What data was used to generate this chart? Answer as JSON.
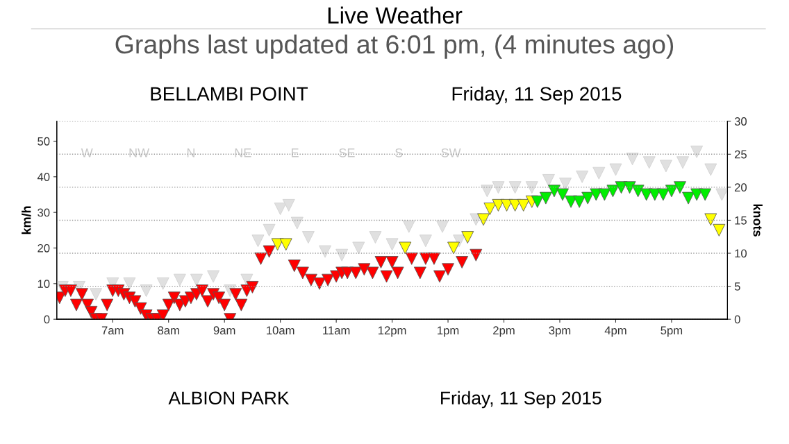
{
  "chart_data": {
    "type": "scatter",
    "title": "Live Weather",
    "subtitle": "Graphs last updated at 6:01 pm, (4 minutes ago)",
    "annotations": [
      "BELLAMBI POINT",
      "Friday, 11 Sep 2015",
      "W",
      "NW",
      "N",
      "NE",
      "E",
      "SE",
      "S",
      "SW",
      "ALBION PARK",
      "Friday, 11 Sep 2015"
    ],
    "ylabel": "km/h",
    "y2label": "knots",
    "marker": "triangle",
    "grid": "y",
    "legend": false,
    "xlim": [
      "2015-09-11T06:00",
      "2015-09-11T18:00"
    ],
    "xticks": [
      {
        "value": "2015-09-11T07:00",
        "label": "7am"
      },
      {
        "value": "2015-09-11T08:00",
        "label": "8am"
      },
      {
        "value": "2015-09-11T09:00",
        "label": "9am"
      },
      {
        "value": "2015-09-11T10:00",
        "label": "10am"
      },
      {
        "value": "2015-09-11T11:00",
        "label": "11am"
      },
      {
        "value": "2015-09-11T12:00",
        "label": "12pm"
      },
      {
        "value": "2015-09-11T13:00",
        "label": "1pm"
      },
      {
        "value": "2015-09-11T14:00",
        "label": "2pm"
      },
      {
        "value": "2015-09-11T15:00",
        "label": "3pm"
      },
      {
        "value": "2015-09-11T16:00",
        "label": "4pm"
      },
      {
        "value": "2015-09-11T17:00",
        "label": "5pm"
      }
    ],
    "ylim": [
      0,
      55.6
    ],
    "yticks": [
      0,
      10,
      20,
      30,
      40,
      50
    ],
    "y2lim": [
      0,
      30
    ],
    "y2ticks": [
      0,
      5,
      10,
      15,
      20,
      25,
      30
    ],
    "series": [
      {
        "color": "#e0e0e0",
        "x": [
          "2015-09-11T06:06",
          "2015-09-11T06:24",
          "2015-09-11T06:42",
          "2015-09-11T07:00",
          "2015-09-11T07:18",
          "2015-09-11T07:36",
          "2015-09-11T07:54",
          "2015-09-11T08:12",
          "2015-09-11T08:30",
          "2015-09-11T08:48",
          "2015-09-11T09:06",
          "2015-09-11T09:24",
          "2015-09-11T09:36",
          "2015-09-11T09:48",
          "2015-09-11T10:00",
          "2015-09-11T10:09",
          "2015-09-11T10:18",
          "2015-09-11T10:30",
          "2015-09-11T10:48",
          "2015-09-11T11:06",
          "2015-09-11T11:24",
          "2015-09-11T11:42",
          "2015-09-11T12:00",
          "2015-09-11T12:18",
          "2015-09-11T12:36",
          "2015-09-11T12:54",
          "2015-09-11T13:12",
          "2015-09-11T13:30",
          "2015-09-11T13:42",
          "2015-09-11T13:54",
          "2015-09-11T14:12",
          "2015-09-11T14:30",
          "2015-09-11T14:48",
          "2015-09-11T15:06",
          "2015-09-11T15:24",
          "2015-09-11T15:42",
          "2015-09-11T16:00",
          "2015-09-11T16:18",
          "2015-09-11T16:36",
          "2015-09-11T16:54",
          "2015-09-11T17:12",
          "2015-09-11T17:27",
          "2015-09-11T17:42",
          "2015-09-11T17:54"
        ],
        "values": [
          9,
          9,
          7,
          10,
          10,
          8,
          10,
          11,
          11,
          12,
          8,
          11,
          22,
          25,
          31,
          32,
          27,
          23,
          19,
          18,
          20,
          23,
          21,
          26,
          22,
          26,
          22,
          28,
          36,
          37,
          37,
          37,
          39,
          38,
          40,
          41,
          42,
          45,
          44,
          43,
          44,
          47,
          42,
          35
        ]
      },
      {
        "x": [
          "2015-09-11T06:03",
          "2015-09-11T06:09",
          "2015-09-11T06:15",
          "2015-09-11T06:21",
          "2015-09-11T06:27",
          "2015-09-11T06:33",
          "2015-09-11T06:37",
          "2015-09-11T06:42",
          "2015-09-11T06:48",
          "2015-09-11T06:54",
          "2015-09-11T07:00",
          "2015-09-11T07:06",
          "2015-09-11T07:12",
          "2015-09-11T07:18",
          "2015-09-11T07:24",
          "2015-09-11T07:30",
          "2015-09-11T07:36",
          "2015-09-11T07:42",
          "2015-09-11T07:48",
          "2015-09-11T07:54",
          "2015-09-11T08:00",
          "2015-09-11T08:06",
          "2015-09-11T08:12",
          "2015-09-11T08:18",
          "2015-09-11T08:24",
          "2015-09-11T08:30",
          "2015-09-11T08:36",
          "2015-09-11T08:42",
          "2015-09-11T08:48",
          "2015-09-11T08:54",
          "2015-09-11T09:00",
          "2015-09-11T09:06",
          "2015-09-11T09:12",
          "2015-09-11T09:18",
          "2015-09-11T09:24",
          "2015-09-11T09:30",
          "2015-09-11T09:39",
          "2015-09-11T09:48",
          "2015-09-11T09:57",
          "2015-09-11T10:06",
          "2015-09-11T10:15",
          "2015-09-11T10:24",
          "2015-09-11T10:33",
          "2015-09-11T10:42",
          "2015-09-11T10:51",
          "2015-09-11T11:00",
          "2015-09-11T11:06",
          "2015-09-11T11:12",
          "2015-09-11T11:21",
          "2015-09-11T11:30",
          "2015-09-11T11:39",
          "2015-09-11T11:48",
          "2015-09-11T11:54",
          "2015-09-11T12:00",
          "2015-09-11T12:06",
          "2015-09-11T12:14",
          "2015-09-11T12:21",
          "2015-09-11T12:30",
          "2015-09-11T12:36",
          "2015-09-11T12:45",
          "2015-09-11T12:51",
          "2015-09-11T13:00",
          "2015-09-11T13:06",
          "2015-09-11T13:15",
          "2015-09-11T13:21",
          "2015-09-11T13:30",
          "2015-09-11T13:38",
          "2015-09-11T13:45",
          "2015-09-11T13:54",
          "2015-09-11T14:03",
          "2015-09-11T14:12",
          "2015-09-11T14:21",
          "2015-09-11T14:30",
          "2015-09-11T14:36",
          "2015-09-11T14:45",
          "2015-09-11T14:54",
          "2015-09-11T15:03",
          "2015-09-11T15:12",
          "2015-09-11T15:21",
          "2015-09-11T15:30",
          "2015-09-11T15:39",
          "2015-09-11T15:48",
          "2015-09-11T15:57",
          "2015-09-11T16:06",
          "2015-09-11T16:15",
          "2015-09-11T16:24",
          "2015-09-11T16:33",
          "2015-09-11T16:42",
          "2015-09-11T16:51",
          "2015-09-11T17:00",
          "2015-09-11T17:09",
          "2015-09-11T17:18",
          "2015-09-11T17:27",
          "2015-09-11T17:36",
          "2015-09-11T17:42",
          "2015-09-11T17:51"
        ],
        "values": [
          6,
          8,
          8,
          4,
          7,
          4,
          2,
          0,
          0,
          4,
          8,
          8,
          7,
          6,
          5,
          3,
          1,
          0,
          0,
          1,
          4,
          6,
          4,
          5,
          6,
          7,
          8,
          5,
          7,
          6,
          4,
          0,
          7,
          4,
          8,
          9,
          17,
          19,
          21,
          21,
          15,
          13,
          11,
          10,
          11,
          12,
          13,
          13,
          13,
          14,
          13,
          16,
          12,
          16,
          13,
          20,
          17,
          13,
          17,
          17,
          12,
          14,
          20,
          16,
          23,
          18,
          28,
          31,
          32,
          32,
          32,
          32,
          33,
          33,
          34,
          36,
          35,
          33,
          33,
          34,
          35,
          35,
          36,
          37,
          37,
          36,
          35,
          35,
          35,
          36,
          37,
          34,
          35,
          35,
          28,
          25
        ],
        "colors": [
          "#ff0000",
          "#ff0000",
          "#ff0000",
          "#ff0000",
          "#ff0000",
          "#ff0000",
          "#ff0000",
          "#ff0000",
          "#ff0000",
          "#ff0000",
          "#ff0000",
          "#ff0000",
          "#ff0000",
          "#ff0000",
          "#ff0000",
          "#ff0000",
          "#ff0000",
          "#ff0000",
          "#ff0000",
          "#ff0000",
          "#ff0000",
          "#ff0000",
          "#ff0000",
          "#ff0000",
          "#ff0000",
          "#ff0000",
          "#ff0000",
          "#ff0000",
          "#ff0000",
          "#ff0000",
          "#ff0000",
          "#ff0000",
          "#ff0000",
          "#ff0000",
          "#ff0000",
          "#ff0000",
          "#ff0000",
          "#ff0000",
          "#ffff00",
          "#ffff00",
          "#ff0000",
          "#ff0000",
          "#ff0000",
          "#ff0000",
          "#ff0000",
          "#ff0000",
          "#ff0000",
          "#ff0000",
          "#ff0000",
          "#ff0000",
          "#ff0000",
          "#ff0000",
          "#ff0000",
          "#ff0000",
          "#ff0000",
          "#ffff00",
          "#ff0000",
          "#ff0000",
          "#ff0000",
          "#ff0000",
          "#ff0000",
          "#ff0000",
          "#ffff00",
          "#ff0000",
          "#ffff00",
          "#ff0000",
          "#ffff00",
          "#ffff00",
          "#ffff00",
          "#ffff00",
          "#ffff00",
          "#ffff00",
          "#ffff00",
          "#00ee00",
          "#00ee00",
          "#00ee00",
          "#00ee00",
          "#00ee00",
          "#00ee00",
          "#00ee00",
          "#00ee00",
          "#00ee00",
          "#00ee00",
          "#00ee00",
          "#00ee00",
          "#00ee00",
          "#00ee00",
          "#00ee00",
          "#00ee00",
          "#00ee00",
          "#00ee00",
          "#00ee00",
          "#00ee00",
          "#00ee00",
          "#ffff00",
          "#ffff00"
        ]
      }
    ]
  }
}
